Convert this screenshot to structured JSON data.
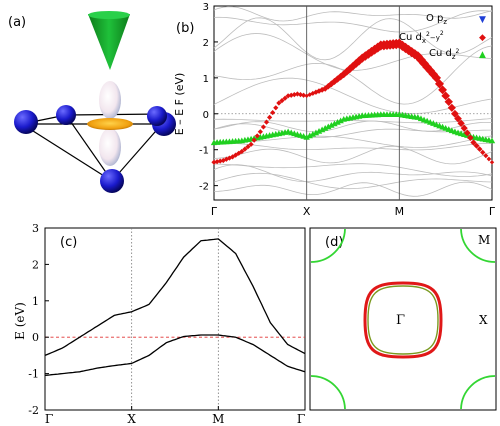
{
  "chart_data": [
    {
      "panel": "(a)",
      "type": "other",
      "label": "(a)"
    },
    {
      "panel": "(b)",
      "type": "scatter",
      "label": "(b)",
      "ylabel": "E – E F (eV)",
      "ylim": [
        -2.4,
        3
      ],
      "yticks": [
        "3",
        "2",
        "1",
        "0",
        "-1",
        "-2"
      ],
      "xticks": [
        "Γ",
        "X",
        "M",
        "Γ"
      ],
      "zero_line": "dotted",
      "legend_position": "top-right",
      "legend": [
        {
          "label": "O p",
          "sub": "z",
          "sup": "",
          "color": "#1f3fd6",
          "symbol": "▼"
        },
        {
          "label": "Cu d",
          "sub": "x",
          "sup": "2",
          "suffix": "−y",
          "suffix_sup": "2",
          "color": "#e01010",
          "symbol": "◆"
        },
        {
          "label": "Cu d",
          "sub": "z",
          "sup": "2",
          "color": "#20d020",
          "symbol": "▲"
        }
      ],
      "series": [
        {
          "name": "Cu d x2−y2",
          "color": "#e01010",
          "x": [
            0,
            0.1,
            0.2,
            0.3,
            0.4,
            0.5,
            0.6,
            0.7,
            0.8,
            0.9,
            1.0,
            1.2,
            1.4,
            1.6,
            1.8,
            2.0,
            2.2,
            2.4,
            2.6,
            2.8,
            3.0
          ],
          "y": [
            -1.35,
            -1.3,
            -1.2,
            -1.05,
            -0.85,
            -0.5,
            -0.1,
            0.3,
            0.5,
            0.55,
            0.5,
            0.7,
            1.1,
            1.55,
            1.9,
            1.95,
            1.6,
            1.0,
            0.0,
            -0.8,
            -1.35
          ]
        },
        {
          "name": "Cu d z2",
          "color": "#20d020",
          "x": [
            0,
            0.3,
            0.6,
            0.8,
            1.0,
            1.2,
            1.4,
            1.6,
            1.8,
            2.0,
            2.2,
            2.4,
            2.6,
            2.8,
            3.0
          ],
          "y": [
            -0.8,
            -0.75,
            -0.6,
            -0.5,
            -0.65,
            -0.4,
            -0.15,
            -0.05,
            -0.02,
            -0.02,
            -0.1,
            -0.3,
            -0.5,
            -0.65,
            -0.75
          ]
        }
      ]
    },
    {
      "panel": "(c)",
      "type": "line",
      "label": "(c)",
      "ylabel": "E (eV)",
      "ylim": [
        -2,
        3
      ],
      "yticks": [
        "3",
        "2",
        "1",
        "0",
        "-1",
        "-2"
      ],
      "xticks": [
        "Γ",
        "X",
        "M",
        "Γ"
      ],
      "zero_line": "dashed",
      "series": [
        {
          "x": [
            0,
            0.2,
            0.4,
            0.6,
            0.8,
            1.0,
            1.2,
            1.4,
            1.6,
            1.8,
            2.0,
            2.2,
            2.4,
            2.6,
            2.8,
            3.0
          ],
          "y": [
            -0.5,
            -0.3,
            0.0,
            0.3,
            0.6,
            0.7,
            0.9,
            1.5,
            2.2,
            2.65,
            2.7,
            2.3,
            1.4,
            0.4,
            -0.2,
            -0.45
          ]
        },
        {
          "x": [
            0,
            0.2,
            0.4,
            0.6,
            0.8,
            1.0,
            1.2,
            1.4,
            1.6,
            1.8,
            2.0,
            2.2,
            2.4,
            2.6,
            2.8,
            3.0
          ],
          "y": [
            -1.05,
            -1.0,
            -0.95,
            -0.85,
            -0.78,
            -0.72,
            -0.5,
            -0.15,
            0.02,
            0.06,
            0.06,
            0.0,
            -0.2,
            -0.5,
            -0.8,
            -0.95
          ]
        }
      ]
    },
    {
      "panel": "(d)",
      "type": "other",
      "label": "(d)",
      "point_labels": [
        "M",
        "Γ",
        "X"
      ]
    }
  ]
}
